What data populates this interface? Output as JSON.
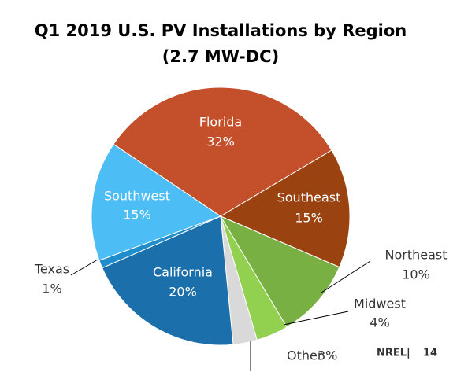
{
  "chart_data": {
    "type": "pie",
    "title": "Q1 2019 U.S. PV Installations by Region",
    "subtitle": "(2.7 MW-DC)",
    "categories": [
      "Florida",
      "Southeast",
      "Northeast",
      "Midwest",
      "Other",
      "California",
      "Texas",
      "Southwest"
    ],
    "values": [
      32,
      15,
      10,
      4,
      3,
      20,
      1,
      15
    ],
    "value_labels": [
      "32%",
      "15%",
      "10%",
      "4%",
      "3%",
      "20%",
      "1%",
      "15%"
    ],
    "colors": [
      "#c4502b",
      "#9a4210",
      "#78b043",
      "#92d050",
      "#d9d9d9",
      "#1b6fab",
      "#1f8ccb",
      "#4dbdf5"
    ]
  },
  "footer": {
    "source": "NREL",
    "separator": "|",
    "page": "14"
  }
}
